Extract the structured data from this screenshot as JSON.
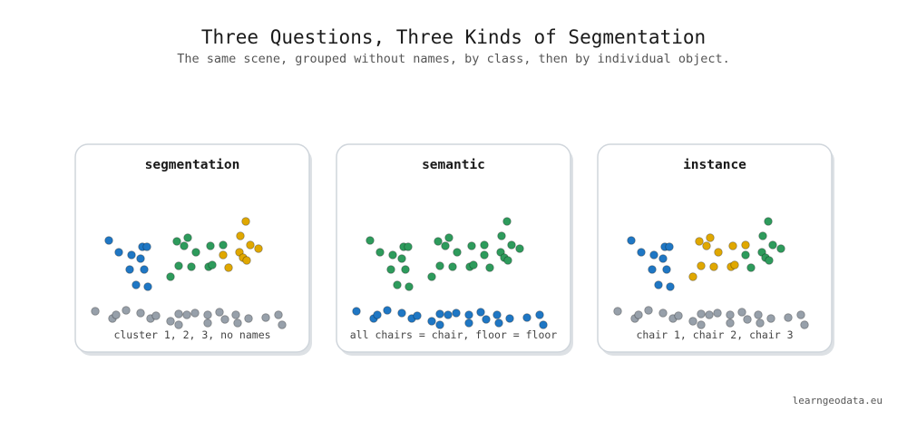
{
  "header": {
    "title": "Three Questions, Three Kinds of Segmentation",
    "subtitle": "The same scene, grouped without names, by class, then by individual object."
  },
  "panels": [
    {
      "title": "segmentation",
      "caption": "cluster 1, 2, 3, no names"
    },
    {
      "title": "semantic",
      "caption": "all chairs = chair, floor = floor"
    },
    {
      "title": "instance",
      "caption": "chair 1, chair 2, chair 3"
    }
  ],
  "footer": "learngeodata.eu"
}
